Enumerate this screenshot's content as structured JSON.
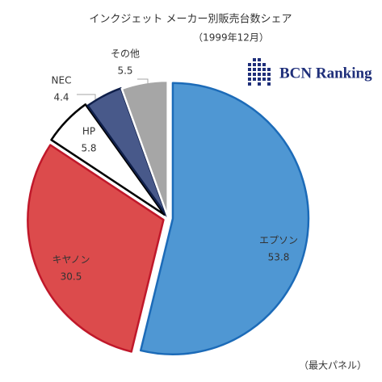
{
  "chart_data": {
    "type": "pie",
    "title": "インクジェット メーカー別販売台数シェア",
    "subtitle": "（1999年12月）",
    "note": "（最大パネル）",
    "logo_text": "BCN Ranking",
    "categories": [
      "エプソン",
      "キヤノン",
      "HP",
      "NEC",
      "その他"
    ],
    "values": [
      53.8,
      30.5,
      5.8,
      4.4,
      5.5
    ],
    "colors": [
      "#4f97d3",
      "#dc4b4c",
      "#ffffff",
      "#48598a",
      "#a6a6a6"
    ],
    "border_colors": [
      "#1c6bb8",
      "#c0182a",
      "#000000",
      "#0f1f4a",
      "#ffffff"
    ]
  }
}
